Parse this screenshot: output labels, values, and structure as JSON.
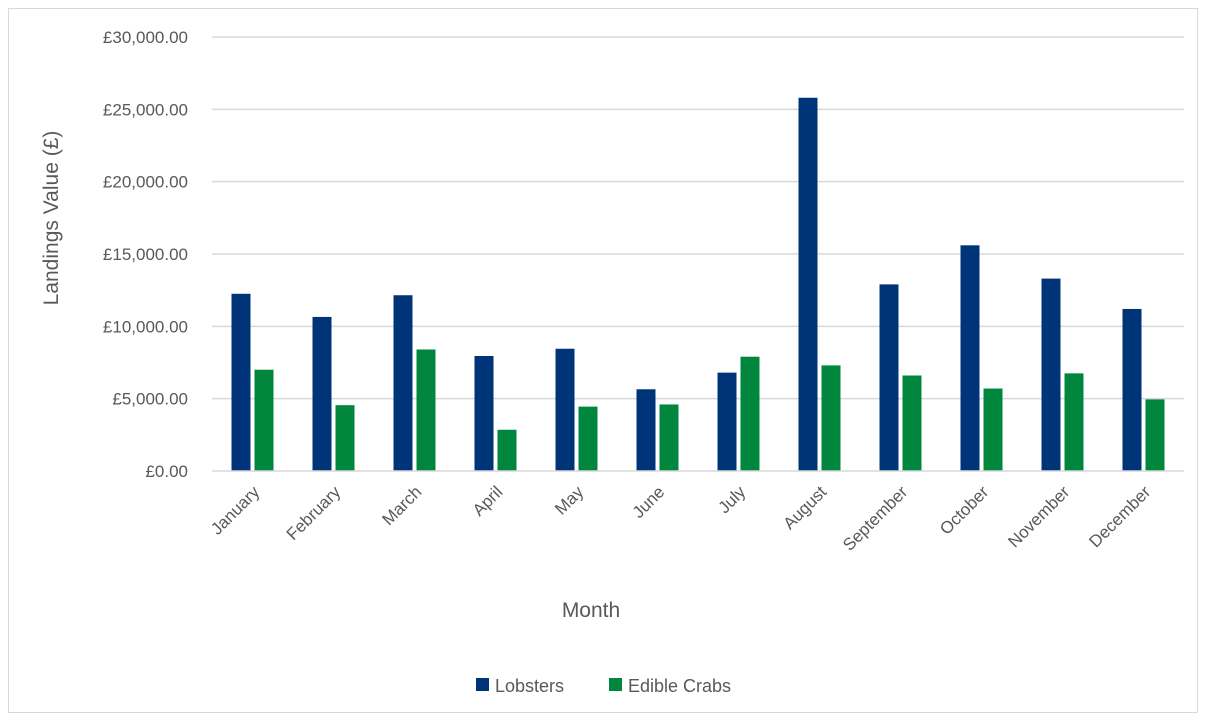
{
  "chart_data": {
    "type": "bar",
    "xlabel": "Month",
    "ylabel": "Landings Value (£)",
    "ylim": [
      0,
      30000
    ],
    "yticks": [
      0,
      5000,
      10000,
      15000,
      20000,
      25000,
      30000
    ],
    "ytick_labels": [
      "£0.00",
      "£5,000.00",
      "£10,000.00",
      "£15,000.00",
      "£20,000.00",
      "£25,000.00",
      "£30,000.00"
    ],
    "grid": true,
    "legend_position": "bottom",
    "categories": [
      "January",
      "February",
      "March",
      "April",
      "May",
      "June",
      "July",
      "August",
      "September",
      "October",
      "November",
      "December"
    ],
    "series": [
      {
        "name": "Lobsters",
        "color": "#003478",
        "values": [
          12250,
          10650,
          12150,
          7950,
          8450,
          5650,
          6800,
          25800,
          12900,
          15600,
          13300,
          11200
        ]
      },
      {
        "name": "Edible Crabs",
        "color": "#00873d",
        "values": [
          7000,
          4550,
          8400,
          2850,
          4450,
          4600,
          7900,
          7300,
          6600,
          5700,
          6750,
          4950
        ]
      }
    ]
  }
}
